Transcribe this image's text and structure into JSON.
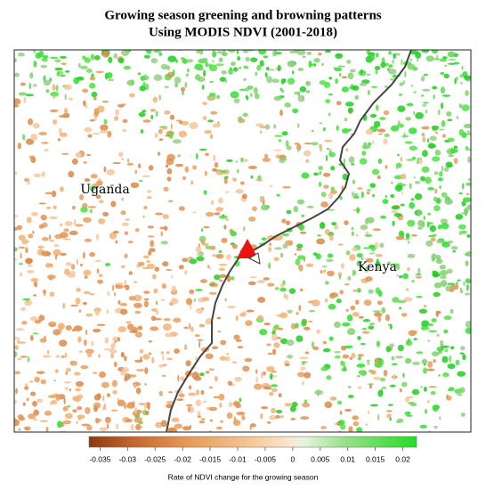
{
  "title": [
    "Growing season greening and browning patterns",
    "Using MODIS NDVI (2001-2018)"
  ],
  "map": {
    "labels": [
      "Uganda",
      "Kenya"
    ]
  },
  "colorbar": {
    "lim": [
      -0.037,
      0.0225
    ],
    "ticks": [
      -0.035,
      -0.03,
      -0.025,
      -0.02,
      -0.015,
      -0.01,
      -0.005,
      0,
      0.005,
      0.01,
      0.015,
      0.02
    ],
    "label": "Rate of NDVI change for the growing season"
  }
}
